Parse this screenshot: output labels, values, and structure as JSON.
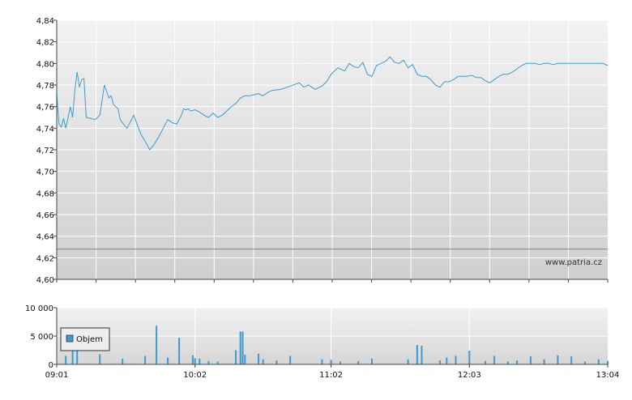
{
  "chart_data": [
    {
      "type": "line",
      "name": "price",
      "ylim": [
        4.6,
        4.84
      ],
      "yticks": [
        "4,84",
        "4,82",
        "4,80",
        "4,78",
        "4,76",
        "4,74",
        "4,72",
        "4,70",
        "4,68",
        "4,66",
        "4,64",
        "4,62",
        "4,60"
      ],
      "watermark": "www.patria.cz",
      "reference_line": {
        "y": 4.628
      },
      "colors": {
        "line": "#3b9bd1",
        "reference": "#e06060",
        "grid": "#ffffff"
      },
      "series": [
        {
          "x": [
            "09:01",
            "09:02",
            "09:03",
            "09:04",
            "09:05",
            "09:06",
            "09:07",
            "09:08",
            "09:09",
            "09:10",
            "09:11",
            "09:12",
            "09:13",
            "09:14",
            "09:16",
            "09:18",
            "09:20",
            "09:22",
            "09:24",
            "09:25",
            "09:26",
            "09:27",
            "09:28",
            "09:29",
            "09:30",
            "09:32",
            "09:35",
            "09:38",
            "09:40",
            "09:42",
            "09:44",
            "09:46",
            "09:48",
            "09:50",
            "09:52",
            "09:54",
            "09:56",
            "09:57",
            "09:58",
            "09:59",
            "10:00",
            "10:02",
            "10:04",
            "10:06",
            "10:08",
            "10:10",
            "10:12",
            "10:14",
            "10:16",
            "10:18",
            "10:20",
            "10:22",
            "10:24",
            "10:26",
            "10:28",
            "10:30",
            "10:32",
            "10:34",
            "10:36",
            "10:40",
            "10:44",
            "10:48",
            "10:50",
            "10:52",
            "10:55",
            "10:58",
            "11:00",
            "11:02",
            "11:05",
            "11:08",
            "11:10",
            "11:12",
            "11:14",
            "11:16",
            "11:18",
            "11:20",
            "11:22",
            "11:24",
            "11:26",
            "11:28",
            "11:30",
            "11:32",
            "11:34",
            "11:36",
            "11:38",
            "11:40",
            "11:42",
            "11:44",
            "11:46",
            "11:48",
            "11:50",
            "11:52",
            "11:54",
            "11:56",
            "11:58",
            "12:00",
            "12:02",
            "12:04",
            "12:06",
            "12:08",
            "12:10",
            "12:12",
            "12:14",
            "12:16",
            "12:18",
            "12:20",
            "12:22",
            "12:24",
            "12:26",
            "12:28",
            "12:30",
            "12:32",
            "12:34",
            "12:36",
            "12:38",
            "12:40",
            "12:42",
            "12:44",
            "12:46",
            "12:48",
            "12:50",
            "12:52",
            "12:54",
            "12:56",
            "12:58",
            "13:00",
            "13:02",
            "13:04"
          ],
          "values": [
            4.772,
            4.744,
            4.741,
            4.749,
            4.74,
            4.75,
            4.76,
            4.75,
            4.775,
            4.792,
            4.778,
            4.785,
            4.786,
            4.75,
            4.749,
            4.748,
            4.752,
            4.78,
            4.768,
            4.77,
            4.762,
            4.76,
            4.758,
            4.748,
            4.745,
            4.74,
            4.752,
            4.735,
            4.728,
            4.72,
            4.725,
            4.732,
            4.74,
            4.748,
            4.745,
            4.744,
            4.752,
            4.758,
            4.757,
            4.758,
            4.756,
            4.757,
            4.755,
            4.752,
            4.75,
            4.754,
            4.75,
            4.752,
            4.756,
            4.76,
            4.763,
            4.768,
            4.77,
            4.77,
            4.771,
            4.772,
            4.77,
            4.773,
            4.775,
            4.776,
            4.779,
            4.782,
            4.778,
            4.78,
            4.776,
            4.779,
            4.783,
            4.79,
            4.796,
            4.793,
            4.8,
            4.797,
            4.796,
            4.801,
            4.79,
            4.788,
            4.798,
            4.8,
            4.802,
            4.806,
            4.801,
            4.8,
            4.803,
            4.796,
            4.799,
            4.79,
            4.788,
            4.788,
            4.785,
            4.78,
            4.778,
            4.783,
            4.783,
            4.785,
            4.788,
            4.788,
            4.788,
            4.789,
            4.787,
            4.787,
            4.784,
            4.782,
            4.785,
            4.788,
            4.79,
            4.79,
            4.792,
            4.795,
            4.798,
            4.8,
            4.8,
            4.8,
            4.799,
            4.8,
            4.8,
            4.799,
            4.8,
            4.8,
            4.8,
            4.8,
            4.8,
            4.8,
            4.8,
            4.8,
            4.8,
            4.8,
            4.8,
            4.798
          ]
        }
      ]
    },
    {
      "type": "bar",
      "name": "volume",
      "ylim": [
        0,
        10000
      ],
      "yticks": [
        "10 000",
        "5 000",
        "0"
      ],
      "xticks": [
        "09:01",
        "10:02",
        "11:02",
        "12:03",
        "13:04"
      ],
      "legend": {
        "label": "Objem",
        "placement": "top-left"
      },
      "colors": {
        "bar": "#3b9bd1",
        "grid": "#ffffff"
      },
      "x": [
        "09:05",
        "09:08",
        "09:10",
        "09:20",
        "09:30",
        "09:40",
        "09:45",
        "09:50",
        "09:55",
        "10:01",
        "10:02",
        "10:04",
        "10:08",
        "10:12",
        "10:20",
        "10:22",
        "10:23",
        "10:24",
        "10:30",
        "10:32",
        "10:38",
        "10:44",
        "10:58",
        "11:02",
        "11:06",
        "11:14",
        "11:20",
        "11:36",
        "11:40",
        "11:42",
        "11:50",
        "11:53",
        "11:57",
        "12:03",
        "12:10",
        "12:14",
        "12:20",
        "12:24",
        "12:30",
        "12:36",
        "12:42",
        "12:48",
        "12:54",
        "13:00",
        "13:04"
      ],
      "values": [
        1500,
        4100,
        3900,
        1800,
        1000,
        1500,
        6800,
        1200,
        4700,
        1600,
        1100,
        1000,
        600,
        500,
        2500,
        5800,
        5800,
        1700,
        1900,
        900,
        700,
        1500,
        900,
        800,
        500,
        600,
        1000,
        900,
        3400,
        3300,
        700,
        1200,
        1500,
        2400,
        600,
        1500,
        500,
        700,
        1400,
        900,
        1600,
        1400,
        500,
        900,
        600
      ]
    }
  ]
}
